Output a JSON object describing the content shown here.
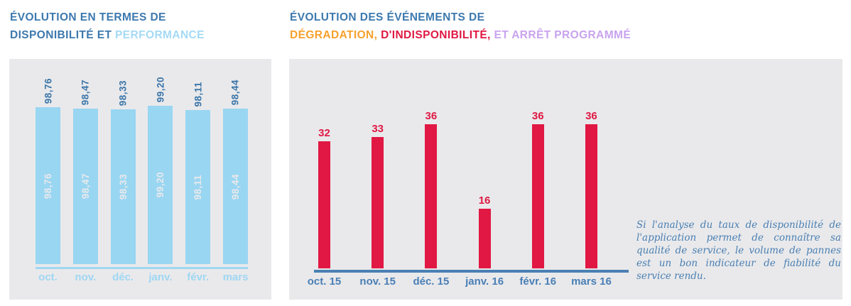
{
  "titles": {
    "left": {
      "line1": "ÉVOLUTION EN TERMES DE",
      "line2_dark": "DISPONIBILITÉ ET ",
      "line2_light": "PERFORMANCE"
    },
    "right": {
      "line1": "ÉVOLUTION DES ÉVÉNEMENTS DE",
      "line2_orange": "DÉGRADATION, ",
      "line2_red": "D'INDISPONIBILITÉ, ",
      "line2_purple": "ET ARRÊT PROGRAMMÉ"
    }
  },
  "note": {
    "text": "Si l'analyse du taux de disponibilité de l'application permet de connaître sa qualité de service, le volume de pannes est un bon indicateur de fiabilité du service rendu."
  },
  "colors": {
    "panel_bg": "#e9e9eb",
    "title_blue": "#3d79ae",
    "light_blue_bar": "#99d6f2",
    "light_blue_text": "#9fd7f3",
    "dark_value_blue": "#3b76a9",
    "orange": "#f7a12c",
    "crimson": "#e01843",
    "purple": "#c9a3ef",
    "axis_blue": "#4a80b4",
    "note_blue": "#4a7fb2"
  },
  "chart_data": [
    {
      "type": "bar",
      "title": "ÉVOLUTION EN TERMES DE DISPONIBILITÉ ET PERFORMANCE",
      "categories": [
        "oct.",
        "nov.",
        "déc.",
        "janv.",
        "févr.",
        "mars"
      ],
      "values": [
        98.76,
        98.47,
        98.33,
        99.2,
        98.11,
        98.44
      ],
      "value_labels": [
        "98,76",
        "98,47",
        "98,33",
        "99,20",
        "98,11",
        "98,44"
      ],
      "value_label_rotation": 90,
      "inner_labels": true,
      "bar_color": "#99d6f2",
      "value_label_color": "#3b76a9",
      "inner_label_color": "#e9e9eb",
      "axis_label_color": "#9fd7f3",
      "xlabel": "",
      "ylabel": "",
      "ylim": [
        62,
        100
      ],
      "grid": false,
      "legend": "none"
    },
    {
      "type": "bar",
      "title": "ÉVOLUTION DES ÉVÉNEMENTS DE DÉGRADATION, D'INDISPONIBILITÉ, ET ARRÊT PROGRAMMÉ",
      "categories": [
        "oct. 15",
        "nov. 15",
        "déc. 15",
        "janv. 16",
        "févr. 16",
        "mars 16"
      ],
      "values": [
        32,
        33,
        36,
        16,
        36,
        36
      ],
      "value_labels": [
        "32",
        "33",
        "36",
        "16",
        "36",
        "36"
      ],
      "bar_color": "#e01843",
      "value_label_color": "#e01843",
      "axis_label_color": "#4a7fb5",
      "axis_line_color": "#4a80b4",
      "xlabel": "",
      "ylabel": "",
      "ylim": [
        0,
        40
      ],
      "grid": false,
      "legend": "none"
    }
  ]
}
